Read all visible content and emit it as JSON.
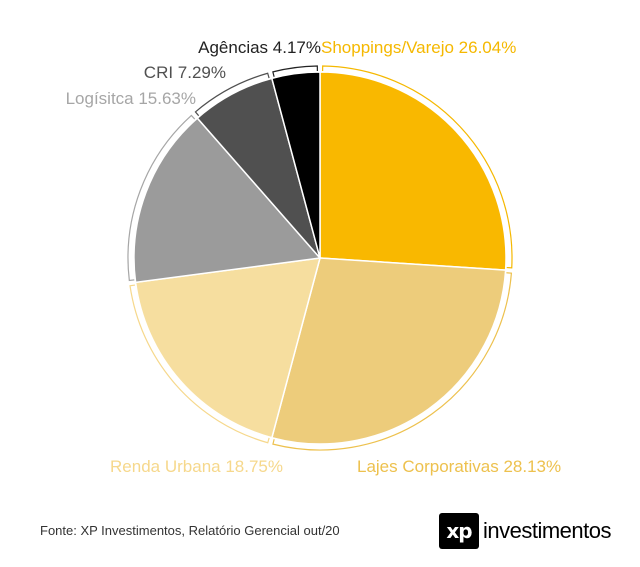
{
  "chart_data": {
    "type": "pie",
    "title": "",
    "slices": [
      {
        "label": "Shoppings/Varejo",
        "value": 26.04,
        "display": "Shoppings/Varejo 26.04%",
        "color": "#F9B800"
      },
      {
        "label": "Lajes Corporativas",
        "value": 28.13,
        "display": "Lajes Corporativas 28.13%",
        "color": "#EDCC7B"
      },
      {
        "label": "Renda Urbana",
        "value": 18.75,
        "display": "Renda Urbana  18.75%",
        "color": "#F6DE9F"
      },
      {
        "label": "Logísitca",
        "value": 15.63,
        "display": "Logísitca  15.63%",
        "color": "#9B9B9B"
      },
      {
        "label": "CRI",
        "value": 7.29,
        "display": "CRI 7.29%",
        "color": "#505050"
      },
      {
        "label": "Agências",
        "value": 4.17,
        "display": "Agências 4.17%",
        "color": "#000000"
      }
    ],
    "label_colors": [
      "#F5B800",
      "#EDC14E",
      "#F6D88C",
      "#A6A6A6",
      "#505050",
      "#222222"
    ]
  },
  "footer": {
    "source": "Fonte: XP Investimentos, Relatório Gerencial out/20"
  },
  "logo": {
    "mark": "xp",
    "word": "investimentos"
  }
}
